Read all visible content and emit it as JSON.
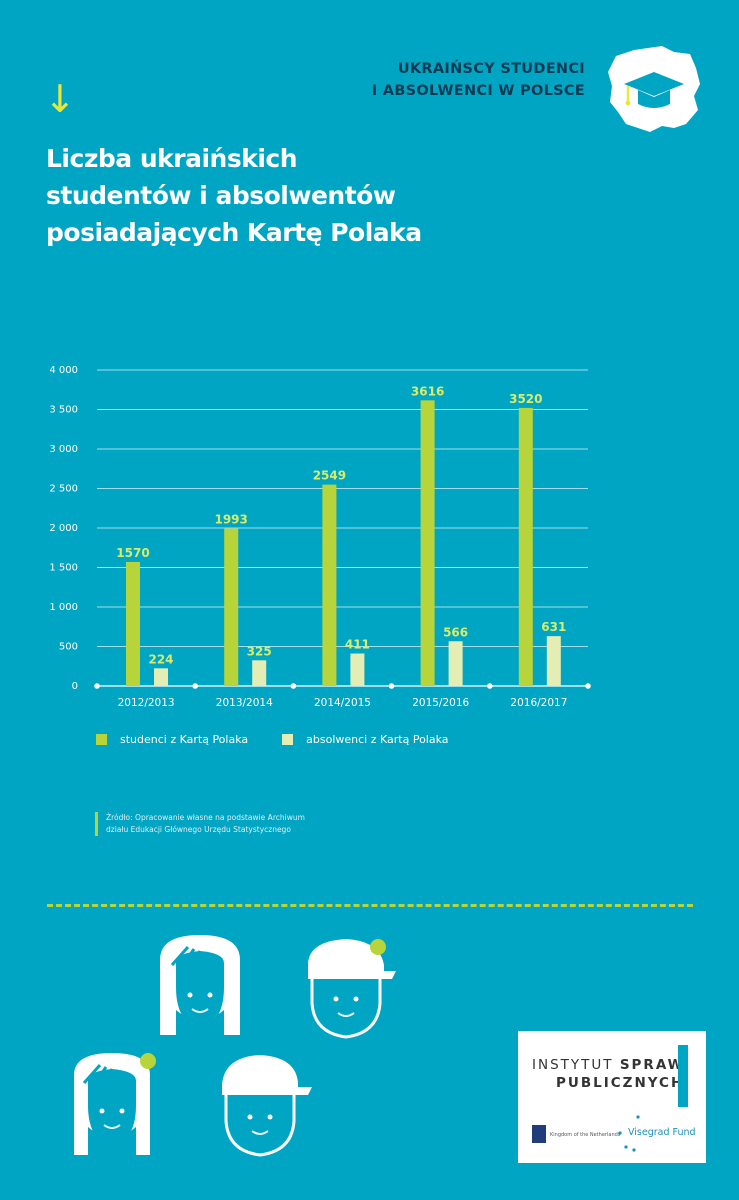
{
  "header": {
    "arrow_glyph": "↓",
    "label_line1": "UKRAIŃSCY STUDENCI",
    "label_line2": "I ABSOLWENCI W POLSCE"
  },
  "title": {
    "line1": "Liczba ukraińskich",
    "line2": "studentów i absolwentów",
    "line3": "posiadających Kartę Polaka"
  },
  "chart_data": {
    "type": "bar",
    "categories": [
      "2012/2013",
      "2013/2014",
      "2014/2015",
      "2015/2016",
      "2016/2017"
    ],
    "series": [
      {
        "name": "studenci z Kartą Polaka",
        "values": [
          1570,
          1993,
          2549,
          3616,
          3520
        ],
        "color": "#b7d43a"
      },
      {
        "name": "absolwenci z Kartą Polaka",
        "values": [
          224,
          325,
          411,
          566,
          631
        ],
        "color": "#e4eeb4"
      }
    ],
    "y_ticks": [
      "4 000",
      "3 500",
      "3 000",
      "2 500",
      "2 000",
      "1 500",
      "1 000",
      "500",
      "0"
    ],
    "ylim": [
      0,
      4000
    ],
    "grid": true,
    "legend_position": "bottom-left"
  },
  "source": {
    "line1": "Źródło: Opracowanie własne na podstawie Archiwum",
    "line2": "działu Edukacji Głównego Urzędu Statystycznego"
  },
  "logo": {
    "line1_regular": "INSTYTUT ",
    "line1_bold": "SPRAW",
    "line2": "PUBLICZNYCH",
    "nl_text": "Kingdom of the Netherlands",
    "vf_text": "Visegrad Fund"
  },
  "colors": {
    "background": "#00a5c3",
    "accent_green": "#b7d43a",
    "accent_pale": "#e4eeb4",
    "label_dark": "#0c3a52",
    "arrow_yellow": "#e8e83a"
  },
  "icons": [
    "down-arrow-icon",
    "poland-map-graduation-cap-icon",
    "female-student-face-icon",
    "male-student-cap-face-icon",
    "netherlands-crest-icon",
    "visegrad-fund-dots-icon"
  ]
}
